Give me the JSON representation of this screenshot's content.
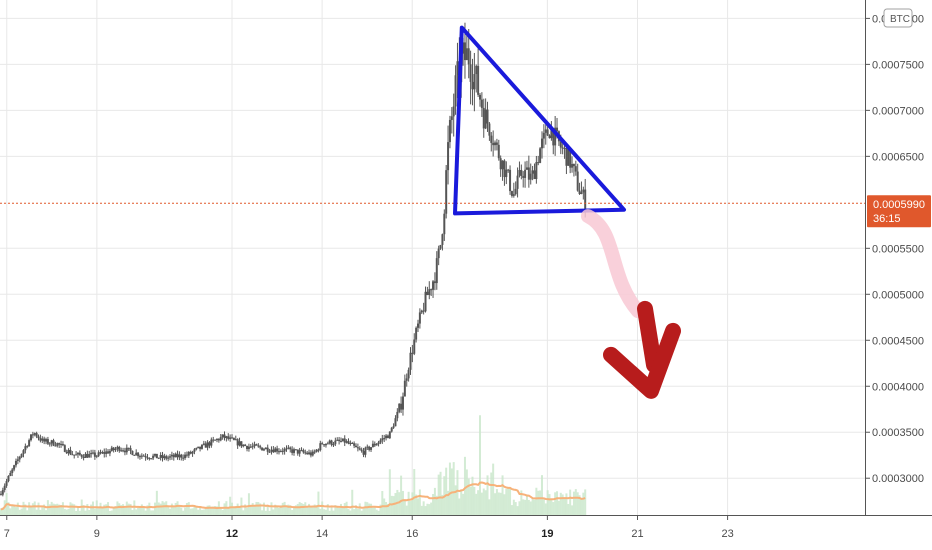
{
  "chart_data": {
    "type": "candlestick",
    "currency_badge": "BTC",
    "x_ticks": [
      {
        "label": "7",
        "bold": false
      },
      {
        "label": "9",
        "bold": false
      },
      {
        "label": "12",
        "bold": true
      },
      {
        "label": "14",
        "bold": false
      },
      {
        "label": "16",
        "bold": false
      },
      {
        "label": "19",
        "bold": true
      },
      {
        "label": "21",
        "bold": false
      },
      {
        "label": "23",
        "bold": false
      }
    ],
    "x_tick_days": [
      7,
      9,
      12,
      14,
      16,
      19,
      21,
      23
    ],
    "x_range": [
      6.85,
      26.05
    ],
    "y_ticks": [
      "0.0003000",
      "0.0003500",
      "0.0004000",
      "0.0004500",
      "0.0005000",
      "0.0005500",
      "0.0006500",
      "0.0007000",
      "0.0007500",
      "0.0008000"
    ],
    "y_tick_values": [
      0.0003,
      0.00035,
      0.0004,
      0.00045,
      0.0005,
      0.00055,
      0.00065,
      0.0007,
      0.00075,
      0.0008
    ],
    "y_range": [
      0.00026,
      0.00082
    ],
    "current_price": {
      "value": 0.000599,
      "label": "0.0005990",
      "countdown": "36:15"
    },
    "price_keypoints": [
      [
        6.85,
        0.000283
      ],
      [
        7.3,
        0.000325
      ],
      [
        7.6,
        0.00035
      ],
      [
        7.8,
        0.00034
      ],
      [
        8.1,
        0.000338
      ],
      [
        8.5,
        0.000325
      ],
      [
        9.0,
        0.000325
      ],
      [
        9.5,
        0.000333
      ],
      [
        10.0,
        0.000325
      ],
      [
        10.5,
        0.000322
      ],
      [
        11.0,
        0.000325
      ],
      [
        11.5,
        0.000338
      ],
      [
        11.8,
        0.000345
      ],
      [
        12.3,
        0.000335
      ],
      [
        12.8,
        0.000332
      ],
      [
        13.3,
        0.00033
      ],
      [
        13.8,
        0.000326
      ],
      [
        14.0,
        0.000338
      ],
      [
        14.5,
        0.00034
      ],
      [
        14.9,
        0.000328
      ],
      [
        15.2,
        0.000338
      ],
      [
        15.5,
        0.000348
      ],
      [
        15.75,
        0.00038
      ],
      [
        15.9,
        0.00042
      ],
      [
        16.1,
        0.00046
      ],
      [
        16.3,
        0.000495
      ],
      [
        16.5,
        0.00052
      ],
      [
        16.65,
        0.00056
      ],
      [
        16.8,
        0.00066
      ],
      [
        16.95,
        0.00072
      ],
      [
        17.1,
        0.000755
      ],
      [
        17.25,
        0.00076
      ],
      [
        17.45,
        0.000725
      ],
      [
        17.65,
        0.00069
      ],
      [
        17.9,
        0.000655
      ],
      [
        18.1,
        0.00063
      ],
      [
        18.25,
        0.000608
      ],
      [
        18.45,
        0.000635
      ],
      [
        18.65,
        0.000625
      ],
      [
        18.85,
        0.00066
      ],
      [
        19.05,
        0.00068
      ],
      [
        19.3,
        0.00066
      ],
      [
        19.5,
        0.000645
      ],
      [
        19.7,
        0.000615
      ],
      [
        19.85,
        0.0006
      ]
    ],
    "series": [
      {
        "name": "price",
        "kind": "candles"
      },
      {
        "name": "volume",
        "kind": "histogram",
        "color": "#c8e6c9"
      },
      {
        "name": "volume_ma",
        "kind": "line",
        "color": "#f7b27a"
      }
    ],
    "annotations": [
      {
        "kind": "triangle",
        "color": "#1a1adb",
        "vertices": [
          [
            17.1,
            0.00079
          ],
          [
            20.7,
            0.000592
          ],
          [
            16.95,
            0.000588
          ]
        ]
      },
      {
        "kind": "arrow",
        "color": "#b71c1c",
        "trail_color": "#f8c8d4",
        "from": [
          19.9,
          0.000585
        ],
        "to": [
          21.3,
          0.000395
        ]
      }
    ],
    "colors": {
      "up": "#26a69a",
      "down": "#ef5350",
      "candle_shade": "#555555",
      "grid": "#e8e8e8",
      "price_line": "#e0582c",
      "price_tag_bg": "#e0582c"
    }
  }
}
